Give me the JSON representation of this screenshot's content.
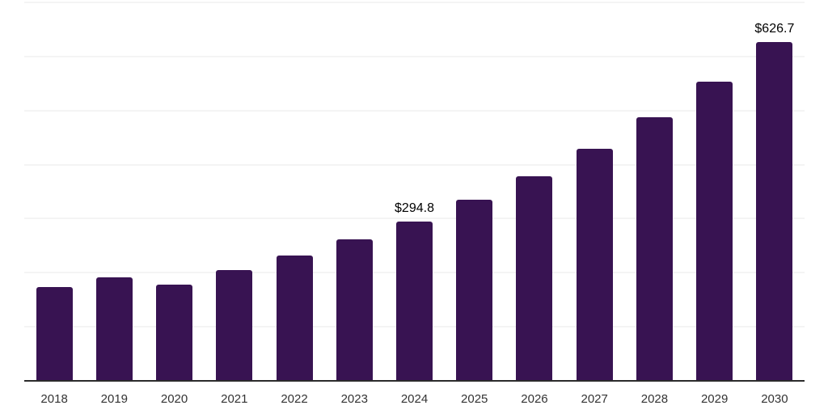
{
  "chart_data": {
    "type": "bar",
    "title": "",
    "xlabel": "",
    "ylabel": "",
    "categories": [
      "2018",
      "2019",
      "2020",
      "2021",
      "2022",
      "2023",
      "2024",
      "2025",
      "2026",
      "2027",
      "2028",
      "2029",
      "2030"
    ],
    "values": [
      173.5,
      191.4,
      178.0,
      204.9,
      231.8,
      261.7,
      294.8,
      334.3,
      379.1,
      429.9,
      487.5,
      552.8,
      626.7
    ],
    "data_labels": [
      "",
      "",
      "",
      "",
      "",
      "",
      "$294.8",
      "",
      "",
      "",
      "",
      "",
      "$626.7"
    ],
    "label_prefix": "$",
    "ylim": [
      0,
      700
    ],
    "gridline_step": 100,
    "grid": true,
    "legend": false,
    "colors": {
      "bar": "#381352",
      "gridline": "#f4f4f4",
      "axis_line": "#2b2b2b",
      "tick_label": "#333333",
      "value_label": "#000000",
      "background": "#ffffff"
    }
  }
}
